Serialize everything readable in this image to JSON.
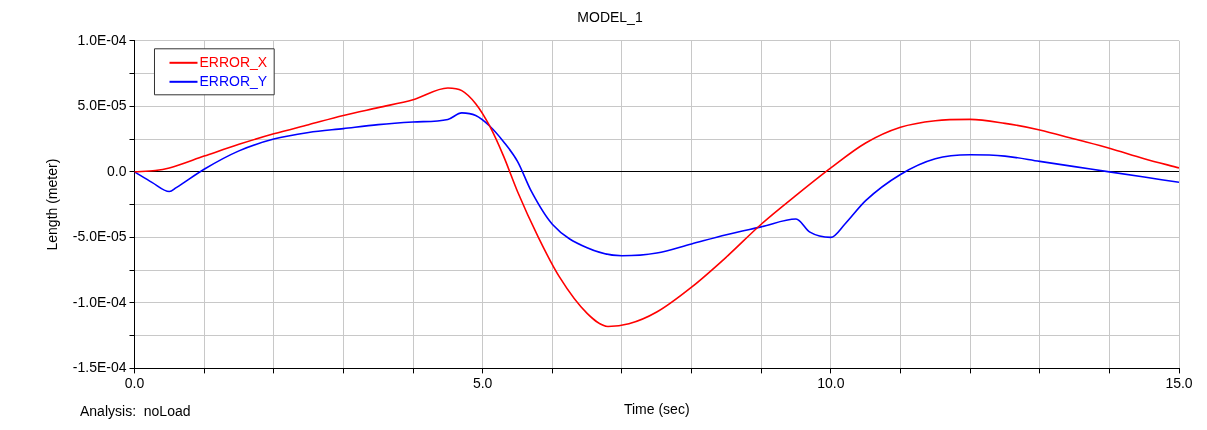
{
  "chart_data": {
    "type": "line",
    "title": "MODEL_1",
    "xlabel": "Time (sec)",
    "ylabel": "Length (meter)",
    "annotations": [
      "Analysis:  noLoad"
    ],
    "legend": "top left",
    "grid": true,
    "xlim": [
      0,
      15
    ],
    "ylim": [
      -0.00015,
      0.0001
    ],
    "xticks": [
      {
        "value": 0,
        "label": "0.0"
      },
      {
        "value": 1,
        "label": null
      },
      {
        "value": 2,
        "label": null
      },
      {
        "value": 3,
        "label": null
      },
      {
        "value": 4,
        "label": null
      },
      {
        "value": 5,
        "label": "5.0"
      },
      {
        "value": 6,
        "label": null
      },
      {
        "value": 7,
        "label": null
      },
      {
        "value": 8,
        "label": null
      },
      {
        "value": 9,
        "label": null
      },
      {
        "value": 10,
        "label": "10.0"
      },
      {
        "value": 11,
        "label": null
      },
      {
        "value": 12,
        "label": null
      },
      {
        "value": 13,
        "label": null
      },
      {
        "value": 14,
        "label": null
      },
      {
        "value": 15,
        "label": "15.0"
      }
    ],
    "yticks": [
      {
        "value": -0.00015,
        "label": "-1.5E-04"
      },
      {
        "value": -0.000125,
        "label": null
      },
      {
        "value": -0.0001,
        "label": "-1.0E-04"
      },
      {
        "value": -7.5e-05,
        "label": null
      },
      {
        "value": -5e-05,
        "label": "-5.0E-05"
      },
      {
        "value": -2.5e-05,
        "label": null
      },
      {
        "value": 0,
        "label": "0.0"
      },
      {
        "value": 2.5e-05,
        "label": null
      },
      {
        "value": 5e-05,
        "label": "5.0E-05"
      },
      {
        "value": 7.5e-05,
        "label": null
      },
      {
        "value": 0.0001,
        "label": "1.0E-04"
      }
    ],
    "series": [
      {
        "name": "ERROR_X",
        "color": "#ff0000",
        "x": [
          0,
          0.3,
          0.5,
          1,
          1.5,
          2,
          2.5,
          3,
          3.5,
          4,
          4.5,
          4.7,
          4.9,
          5.1,
          5.3,
          5.5,
          5.8,
          6.1,
          6.5,
          6.8,
          7.1,
          7.5,
          8,
          8.5,
          9,
          9.5,
          10,
          10.5,
          11,
          11.5,
          12,
          12.5,
          13,
          13.5,
          14,
          14.5,
          15
        ],
        "values": [
          0,
          1e-06,
          3e-06,
          1.2e-05,
          2.1e-05,
          2.9e-05,
          3.6e-05,
          4.3e-05,
          4.9e-05,
          5.5e-05,
          6.4e-05,
          6.2e-05,
          5.2e-05,
          3.5e-05,
          1.2e-05,
          -1.5e-05,
          -5e-05,
          -8e-05,
          -0.000108,
          -0.000118,
          -0.000116,
          -0.000107,
          -8.8e-05,
          -6.5e-05,
          -4e-05,
          -1.8e-05,
          3e-06,
          2.2e-05,
          3.4e-05,
          3.9e-05,
          4e-05,
          3.7e-05,
          3.2e-05,
          2.5e-05,
          1.8e-05,
          1e-05,
          3e-06
        ]
      },
      {
        "name": "ERROR_Y",
        "color": "#0000ff",
        "x": [
          0,
          0.25,
          0.5,
          0.6,
          1,
          1.5,
          2,
          2.5,
          3,
          3.5,
          4,
          4.5,
          4.7,
          4.9,
          5.1,
          5.3,
          5.5,
          5.7,
          6,
          6.5,
          7,
          7.5,
          8,
          8.5,
          9,
          9.5,
          9.7,
          10,
          10.2,
          10.5,
          11,
          11.5,
          12,
          12.5,
          13,
          13.5,
          14,
          14.5,
          15
        ],
        "values": [
          0,
          -8e-06,
          -1.5e-05,
          -1.2e-05,
          2e-06,
          1.6e-05,
          2.5e-05,
          3e-05,
          3.3e-05,
          3.6e-05,
          3.8e-05,
          4e-05,
          4.5e-05,
          4.3e-05,
          3.5e-05,
          2.3e-05,
          8e-06,
          -1.5e-05,
          -4e-05,
          -5.8e-05,
          -6.4e-05,
          -6.2e-05,
          -5.5e-05,
          -4.8e-05,
          -4.2e-05,
          -3.6e-05,
          -4.6e-05,
          -5e-05,
          -4e-05,
          -2.2e-05,
          -2e-06,
          1e-05,
          1.3e-05,
          1.2e-05,
          8e-06,
          4e-06,
          0,
          -4e-06,
          -8e-06
        ]
      }
    ]
  }
}
